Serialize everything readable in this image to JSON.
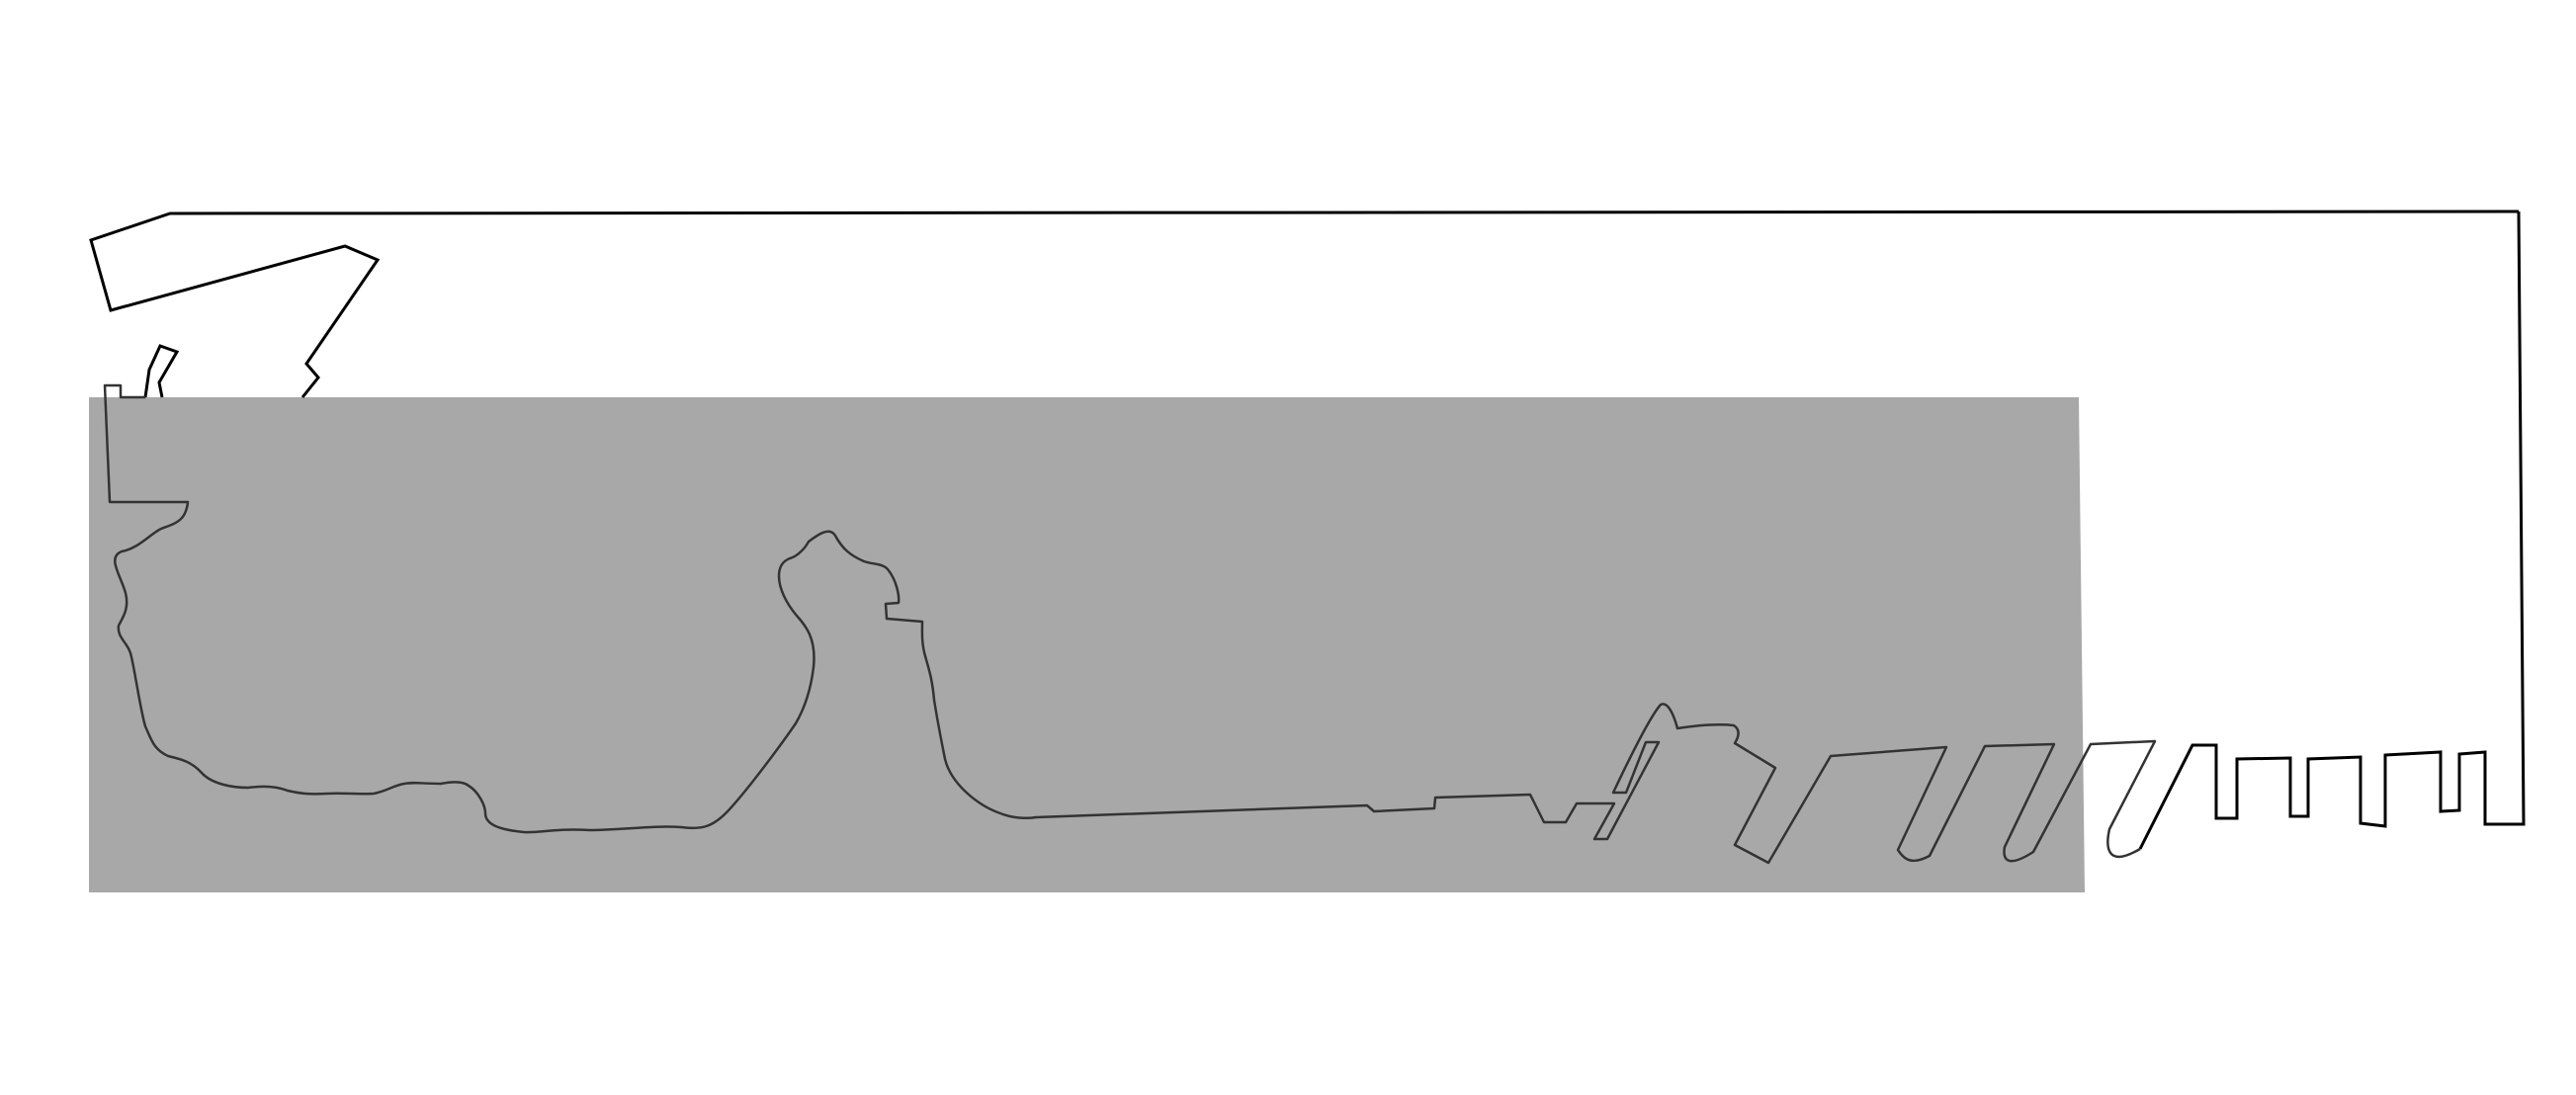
{
  "colors": {
    "background": "#ffffff",
    "shaded_region": "#a8a8a8",
    "outline": "#000000"
  }
}
